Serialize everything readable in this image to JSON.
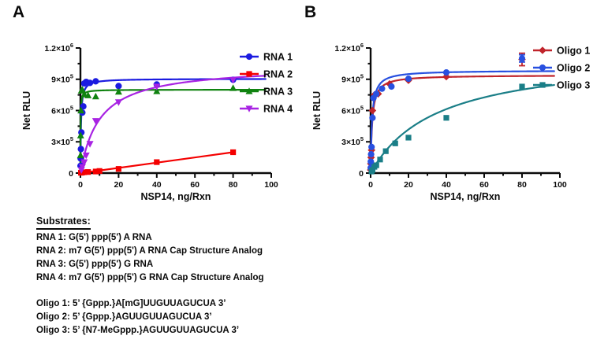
{
  "panels": {
    "a": {
      "letter": "A"
    },
    "b": {
      "letter": "B"
    }
  },
  "chart_data": [
    {
      "panel": "A",
      "type": "scatter",
      "xlabel": "NSP14, ng/Rxn",
      "ylabel": "Net RLU",
      "xlim": [
        0,
        100
      ],
      "ylim": [
        0,
        1200000
      ],
      "grid": false,
      "legend_position": "right-top",
      "x_ticks": [
        0,
        20,
        40,
        60,
        80,
        100
      ],
      "x_minor_ticks": [
        10,
        30,
        50,
        70,
        90
      ],
      "y_ticks": [
        {
          "v": 0,
          "label": "0"
        },
        {
          "v": 300000,
          "label": "3×10^5"
        },
        {
          "v": 600000,
          "label": "6×10^5"
        },
        {
          "v": 900000,
          "label": "9×10^5"
        },
        {
          "v": 1200000,
          "label": "1.2×10^6"
        }
      ],
      "y_minor_ticks": [
        150000,
        450000,
        750000,
        1050000
      ],
      "series": [
        {
          "name": "RNA 1",
          "color": "#1b1be0",
          "marker": "circle",
          "x": [
            0.05,
            0.1,
            0.25,
            0.5,
            1,
            1.5,
            2,
            3,
            5,
            8,
            20,
            40,
            80
          ],
          "y": [
            70000,
            140000,
            230000,
            390000,
            580000,
            640000,
            860000,
            875000,
            865000,
            880000,
            835000,
            850000,
            895000
          ],
          "fit": {
            "type": "mm",
            "bmax": 905000,
            "kd": 0.3
          }
        },
        {
          "name": "RNA 2",
          "color": "#f40000",
          "marker": "square",
          "x": [
            0.25,
            0.5,
            1,
            2,
            4,
            8,
            10,
            20,
            40,
            80
          ],
          "y": [
            3000,
            5000,
            6000,
            8000,
            10000,
            15000,
            20000,
            40000,
            105000,
            200000
          ],
          "fit": {
            "type": "linear",
            "slope": 2500,
            "intercept": 0,
            "xend": 80
          }
        },
        {
          "name": "RNA 3",
          "color": "#108310",
          "marker": "triangle-up",
          "x": [
            0.05,
            0.1,
            0.25,
            0.5,
            1,
            2,
            4,
            8,
            20,
            40,
            80
          ],
          "y": [
            170000,
            360000,
            600000,
            790000,
            800000,
            755000,
            745000,
            735000,
            780000,
            785000,
            815000
          ],
          "fit": {
            "type": "mm",
            "bmax": 800000,
            "kd": 0.1
          }
        },
        {
          "name": "RNA 4",
          "color": "#a823e3",
          "marker": "triangle-down",
          "x": [
            0.5,
            1,
            2,
            3,
            5,
            8,
            20,
            40,
            80
          ],
          "y": [
            30000,
            60000,
            105000,
            170000,
            280000,
            500000,
            680000,
            830000,
            895000
          ],
          "fit": {
            "type": "mm",
            "bmax": 1030000,
            "kd": 10
          }
        }
      ]
    },
    {
      "panel": "B",
      "type": "scatter",
      "xlabel": "NSP14, ng/Rxn",
      "ylabel": "Net RLU",
      "xlim": [
        0,
        100
      ],
      "ylim": [
        0,
        1200000
      ],
      "grid": false,
      "legend_position": "right-top",
      "x_ticks": [
        0,
        20,
        40,
        60,
        80,
        100
      ],
      "x_minor_ticks": [
        10,
        30,
        50,
        70,
        90
      ],
      "y_ticks": [
        {
          "v": 0,
          "label": "0"
        },
        {
          "v": 300000,
          "label": "3×10^5"
        },
        {
          "v": 600000,
          "label": "6×10^5"
        },
        {
          "v": 900000,
          "label": "9×10^5"
        },
        {
          "v": 1200000,
          "label": "1.2×10^6"
        }
      ],
      "y_minor_ticks": [
        150000,
        450000,
        750000,
        1050000
      ],
      "series": [
        {
          "name": "Oligo 1",
          "color": "#c0242b",
          "marker": "diamond",
          "x": [
            0.05,
            0.1,
            0.25,
            0.5,
            1,
            2,
            4,
            10,
            20,
            40,
            80
          ],
          "y": [
            30000,
            90000,
            150000,
            220000,
            600000,
            750000,
            760000,
            855000,
            890000,
            925000,
            1090000
          ],
          "yerr": [
            0,
            0,
            0,
            0,
            0,
            0,
            0,
            0,
            0,
            0,
            60000
          ],
          "fit": {
            "type": "mm",
            "bmax": 940000,
            "kd": 0.8
          }
        },
        {
          "name": "Oligo 2",
          "color": "#2850e0",
          "marker": "circle",
          "x": [
            0.05,
            0.1,
            0.25,
            0.5,
            1,
            1.5,
            3,
            6,
            11,
            20,
            40,
            80
          ],
          "y": [
            50000,
            110000,
            180000,
            250000,
            530000,
            720000,
            760000,
            810000,
            830000,
            905000,
            965000,
            1100000
          ],
          "yerr": [
            0,
            0,
            0,
            0,
            0,
            0,
            0,
            0,
            0,
            0,
            0,
            35000
          ],
          "fit": {
            "type": "mm",
            "bmax": 985000,
            "kd": 0.75
          }
        },
        {
          "name": "Oligo 3",
          "color": "#1a7e87",
          "marker": "square",
          "x": [
            0.5,
            1,
            2,
            3,
            5,
            8,
            13,
            20,
            40,
            80
          ],
          "y": [
            15000,
            30000,
            60000,
            75000,
            130000,
            210000,
            285000,
            340000,
            530000,
            830000
          ],
          "fit": {
            "type": "mm",
            "bmax": 1150000,
            "kd": 35
          }
        }
      ]
    }
  ],
  "substrates": {
    "heading": "Substrates:",
    "rna_lines": [
      "RNA 1: G(5') ppp(5') A RNA",
      "RNA 2: m7 G(5') ppp(5') A RNA Cap Structure Analog",
      "RNA 3: G(5') ppp(5') G RNA",
      "RNA 4: m7 G(5') ppp(5') G RNA Cap Structure Analog"
    ],
    "oligo_lines": [
      "Oligo 1: 5’ {Gppp.}A[mG]UUGUUAGUCUA 3’",
      "Oligo 2: 5’ {Gppp.}AGUUGUUAGUCUA 3’",
      "Oligo 3: 5’ {N7-MeGppp.}AGUUGUUAGUCUA 3’"
    ]
  }
}
